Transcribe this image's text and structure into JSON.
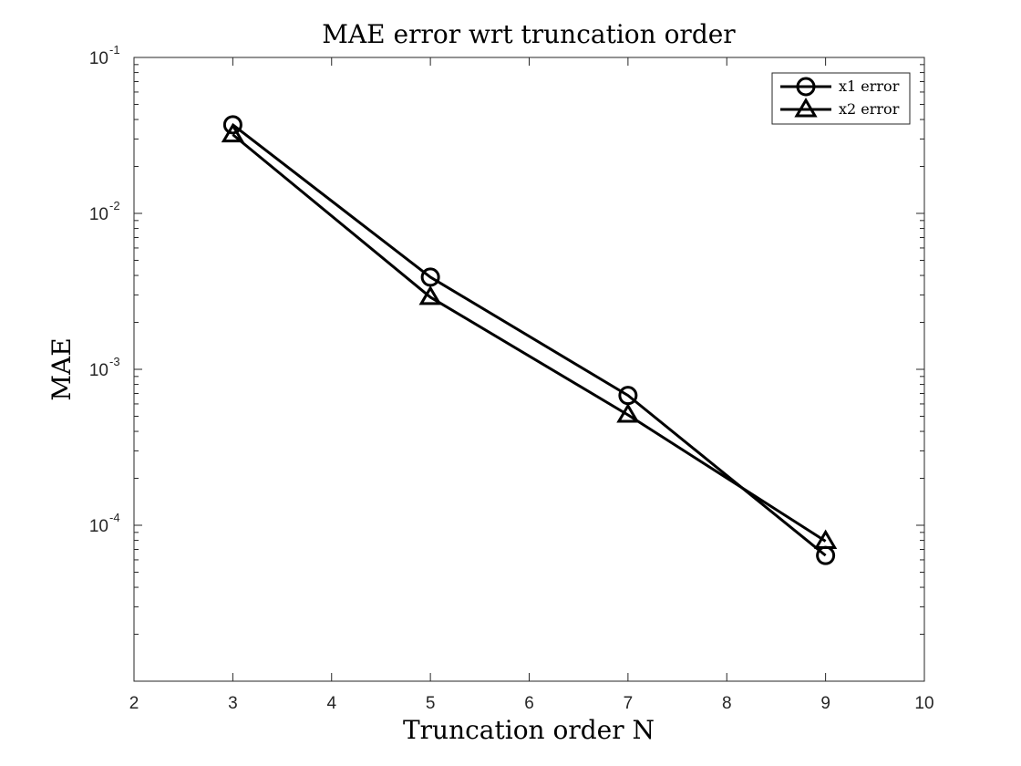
{
  "chart_data": {
    "type": "line",
    "title": "MAE error wrt truncation order",
    "xlabel": "Truncation order N",
    "ylabel": "MAE",
    "xlim": [
      2,
      10
    ],
    "ylim": [
      1e-05,
      0.1
    ],
    "yscale": "log",
    "x_ticks": [
      "2",
      "3",
      "4",
      "5",
      "6",
      "7",
      "8",
      "9",
      "10"
    ],
    "y_ticks": [
      {
        "value": 0.1,
        "base": "10",
        "exp": "-1"
      },
      {
        "value": 0.01,
        "base": "10",
        "exp": "-2"
      },
      {
        "value": 0.001,
        "base": "10",
        "exp": "-3"
      },
      {
        "value": 0.0001,
        "base": "10",
        "exp": "-4"
      }
    ],
    "grid": false,
    "legend_position": "top-right",
    "line_color": "#000000",
    "series": [
      {
        "name": "x1 error",
        "marker": "circle",
        "x": [
          3,
          5,
          7,
          9
        ],
        "y": [
          0.037,
          0.0039,
          0.00068,
          6.4e-05
        ]
      },
      {
        "name": "x2 error",
        "marker": "triangle",
        "x": [
          3,
          5,
          7,
          9
        ],
        "y": [
          0.032,
          0.0029,
          0.00051,
          7.9e-05
        ]
      }
    ]
  }
}
